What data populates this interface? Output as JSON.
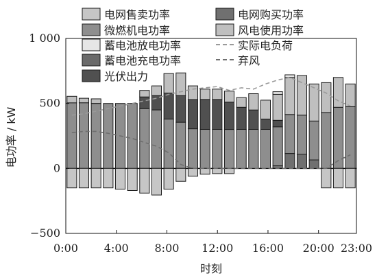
{
  "chart_data": {
    "type": "bar",
    "xlabel": "时刻",
    "ylabel": "电功率 / kW",
    "ylim": [
      -500,
      1000
    ],
    "yticks": [
      "−500",
      "0",
      "500",
      "1 000"
    ],
    "xticks": [
      "0:00",
      "4:00",
      "8:00",
      "12:00",
      "16:00",
      "20:00",
      "23:00"
    ],
    "hours": [
      0,
      1,
      2,
      3,
      4,
      5,
      6,
      7,
      8,
      9,
      10,
      11,
      12,
      13,
      14,
      15,
      16,
      17,
      18,
      19,
      20,
      21,
      22,
      23
    ],
    "legend": [
      {
        "name": "电网售卖功率",
        "color": "#c6c6c6",
        "kind": "bar"
      },
      {
        "name": "电网购买功率",
        "color": "#707070",
        "kind": "bar"
      },
      {
        "name": "微燃机电功率",
        "color": "#8e8e8e",
        "kind": "bar"
      },
      {
        "name": "风电使用功率",
        "color": "#bfbfbf",
        "kind": "bar"
      },
      {
        "name": "蓄电池放电功率",
        "color": "#e6e6e6",
        "kind": "bar"
      },
      {
        "name": "实际电负荷",
        "color": "#9a9a9a",
        "kind": "dash"
      },
      {
        "name": "蓄电池充电功率",
        "color": "#6a6a6a",
        "kind": "bar"
      },
      {
        "name": "弃风",
        "color": "#6e6e6e",
        "kind": "dash"
      },
      {
        "name": "光伏出力",
        "color": "#505050",
        "kind": "bar"
      }
    ],
    "series": [
      {
        "name": "电网购买功率",
        "values": [
          0,
          0,
          0,
          0,
          0,
          0,
          0,
          0,
          0,
          0,
          0,
          0,
          0,
          0,
          0,
          0,
          0,
          20,
          115,
          110,
          65,
          0,
          0,
          0
        ]
      },
      {
        "name": "微燃机电功率",
        "values": [
          505,
          505,
          500,
          500,
          500,
          500,
          460,
          450,
          380,
          355,
          305,
          300,
          300,
          300,
          300,
          300,
          300,
          300,
          300,
          300,
          300,
          430,
          470,
          475
        ]
      },
      {
        "name": "光伏出力",
        "values": [
          0,
          0,
          0,
          0,
          0,
          0,
          90,
          110,
          200,
          205,
          225,
          230,
          230,
          210,
          170,
          150,
          80,
          50,
          0,
          0,
          0,
          0,
          0,
          0
        ]
      },
      {
        "name": "蓄电池充电功率",
        "values": [
          0,
          0,
          0,
          0,
          0,
          0,
          0,
          0,
          0,
          0,
          0,
          0,
          0,
          0,
          0,
          0,
          0,
          0,
          0,
          0,
          0,
          0,
          0,
          0
        ]
      },
      {
        "name": "风电使用功率",
        "values": [
          50,
          35,
          35,
          0,
          0,
          0,
          50,
          75,
          150,
          175,
          105,
          80,
          80,
          85,
          75,
          125,
          145,
          200,
          285,
          305,
          285,
          230,
          230,
          175
        ]
      },
      {
        "name": "蓄电池放电功率",
        "values": [
          0,
          0,
          0,
          0,
          0,
          0,
          0,
          0,
          0,
          0,
          0,
          0,
          0,
          0,
          0,
          0,
          0,
          20,
          20,
          0,
          0,
          0,
          0,
          0
        ]
      },
      {
        "name": "电网售卖功率",
        "values": [
          -150,
          -150,
          -150,
          -150,
          -160,
          -170,
          -190,
          -205,
          -160,
          -100,
          -60,
          -45,
          -40,
          -40,
          0,
          0,
          0,
          0,
          0,
          0,
          0,
          -150,
          -150,
          -150
        ]
      }
    ],
    "lines": [
      {
        "name": "实际电负荷",
        "values": [
          410,
          420,
          440,
          460,
          480,
          500,
          520,
          540,
          570,
          590,
          610,
          620,
          630,
          600,
          620,
          610,
          650,
          680,
          700,
          660,
          620,
          580,
          520,
          480
        ]
      },
      {
        "name": "弃风",
        "values": [
          275,
          285,
          285,
          270,
          250,
          230,
          200,
          170,
          120,
          30,
          0,
          0,
          0,
          0,
          0,
          0,
          0,
          0,
          0,
          0,
          0,
          0,
          60,
          105
        ]
      }
    ]
  }
}
